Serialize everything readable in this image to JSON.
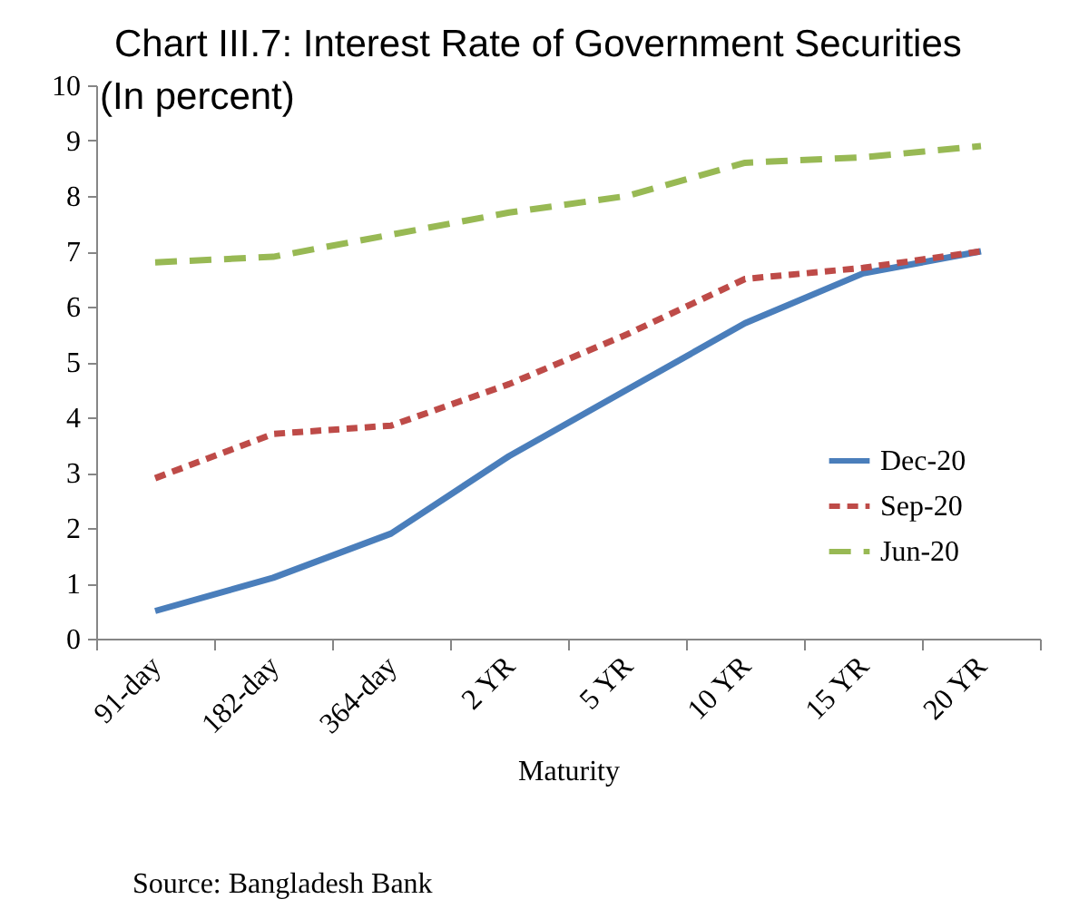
{
  "chart_data": {
    "type": "line",
    "title": "Chart III.7: Interest Rate of Government Securities",
    "subtitle": "(In percent)",
    "xlabel": "Maturity",
    "categories": [
      "91-day",
      "182-day",
      "364-day",
      "2 YR",
      "5 YR",
      "10 YR",
      "15 YR",
      "20 YR"
    ],
    "series": [
      {
        "name": "Dec-20",
        "color": "#4a7ebb",
        "line_style": "solid",
        "values": [
          0.5,
          1.1,
          1.9,
          3.3,
          4.5,
          5.7,
          6.6,
          7.0
        ]
      },
      {
        "name": "Sep-20",
        "color": "#be4b48",
        "line_style": "dotted",
        "values": [
          2.9,
          3.7,
          3.85,
          4.6,
          5.5,
          6.5,
          6.7,
          7.0
        ]
      },
      {
        "name": "Jun-20",
        "color": "#98b954",
        "line_style": "dashed",
        "values": [
          6.8,
          6.9,
          7.3,
          7.7,
          8.0,
          8.6,
          8.7,
          8.9
        ]
      }
    ],
    "ylim": [
      0,
      10
    ],
    "yticks": [
      0,
      1,
      2,
      3,
      4,
      5,
      6,
      7,
      8,
      9,
      10
    ],
    "grid": false,
    "legend": "bottom right",
    "marker": "none",
    "annotations": [
      "Source: Bangladesh Bank"
    ]
  }
}
